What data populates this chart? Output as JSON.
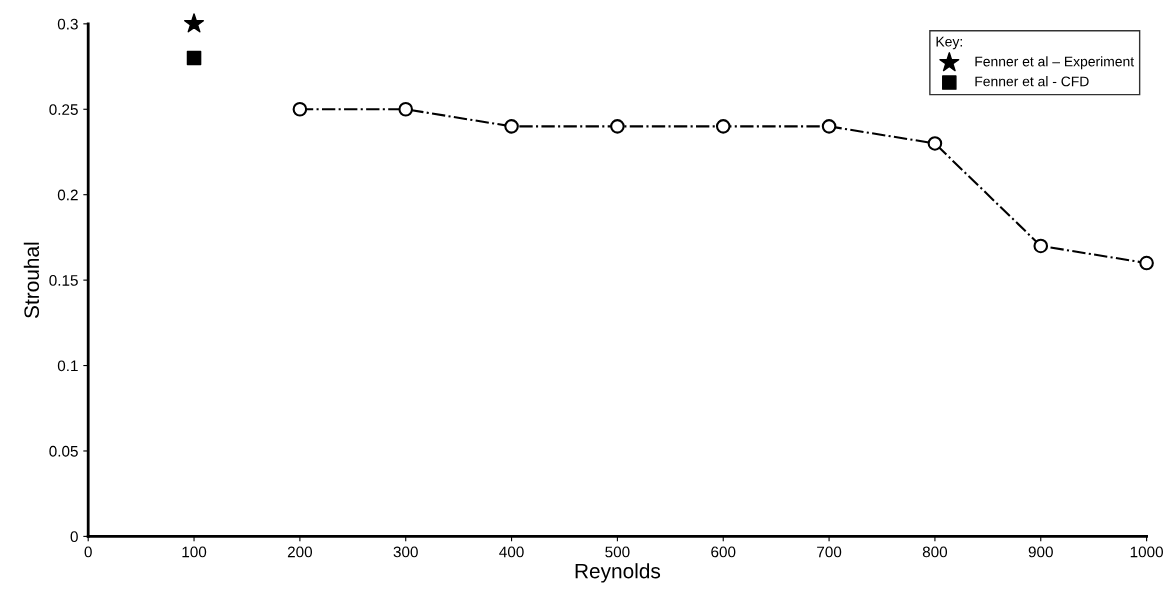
{
  "chart_data": {
    "type": "line",
    "xlabel": "Reynolds",
    "ylabel": "Strouhal",
    "legend_title": "Key:",
    "legend": "top right",
    "grid": false,
    "xlim": [
      0,
      1000
    ],
    "xticks": [
      0,
      100,
      200,
      300,
      400,
      500,
      600,
      700,
      800,
      900,
      1000
    ],
    "ylim": [
      0,
      0.3
    ],
    "yticks": [
      0,
      0.05,
      0.1,
      0.15,
      0.2,
      0.25,
      0.3
    ],
    "series": [
      {
        "color": "#000000",
        "marker": "circle",
        "line_style": "dashdot",
        "x": [
          200,
          300,
          400,
          500,
          600,
          700,
          800,
          900,
          1000
        ],
        "values": [
          0.25,
          0.25,
          0.24,
          0.24,
          0.24,
          0.24,
          0.23,
          0.17,
          0.16
        ]
      },
      {
        "type": "scatter",
        "name": "Fenner et al – Experiment",
        "color": "#000000",
        "marker": "star",
        "x": [
          100
        ],
        "values": [
          0.3
        ]
      },
      {
        "type": "scatter",
        "name": "Fenner et al - CFD",
        "color": "#000000",
        "marker": "square",
        "x": [
          100
        ],
        "values": [
          0.28
        ]
      }
    ]
  }
}
